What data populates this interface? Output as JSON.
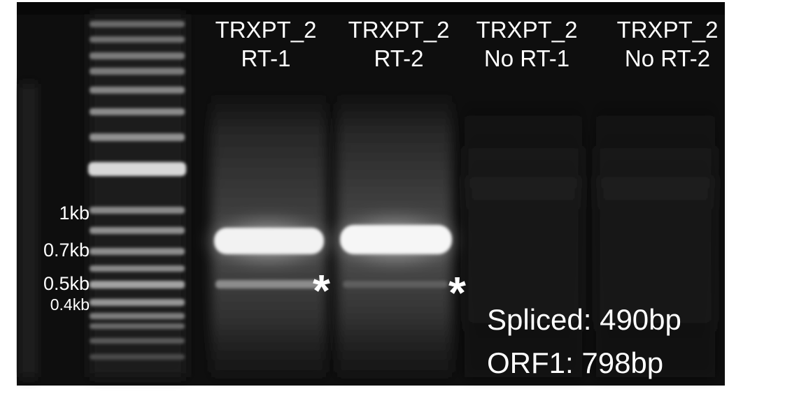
{
  "lanes": [
    {
      "line1": "TRXPT_2",
      "line2": "RT-1"
    },
    {
      "line1": "TRXPT_2",
      "line2": "RT-2"
    },
    {
      "line1": "TRXPT_2",
      "line2": "No RT-1"
    },
    {
      "line1": "TRXPT_2",
      "line2": "No RT-2"
    }
  ],
  "ladder_markers": [
    "1kb",
    "0.7kb",
    "0.5kb",
    "0.4kb"
  ],
  "asterisk": "*",
  "annotations": {
    "spliced": "Spliced: 490bp",
    "orf1": "ORF1: 798bp"
  },
  "colors": {
    "gel_background": "#0d0d0d",
    "band": "#ffffff",
    "label": "#ffffff",
    "page": "#ffffff"
  }
}
